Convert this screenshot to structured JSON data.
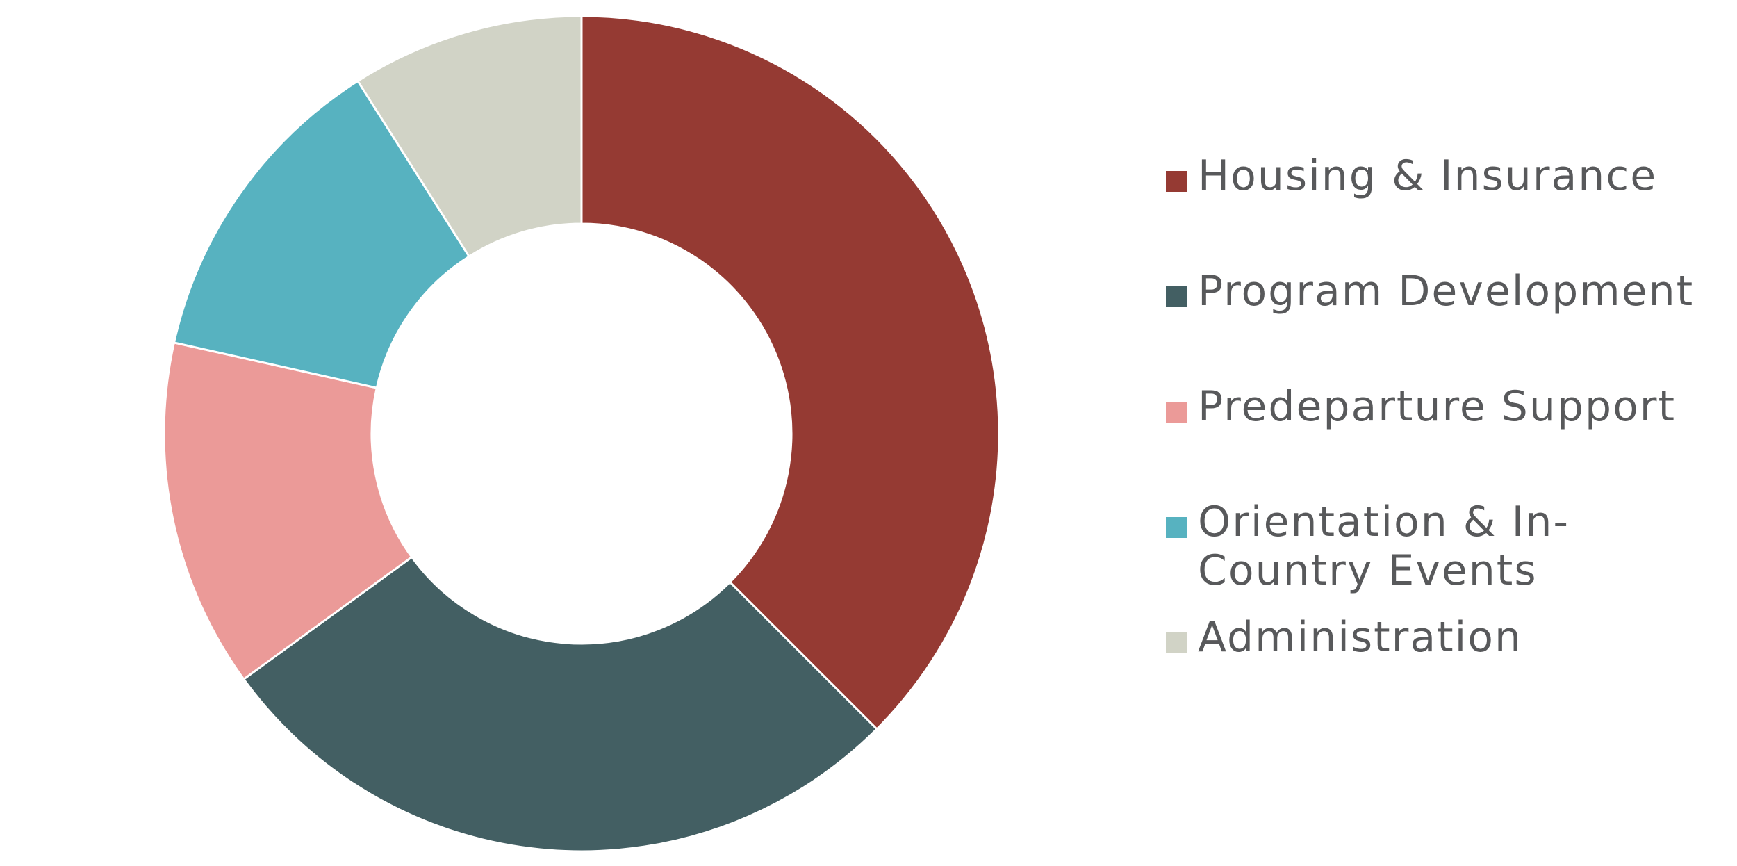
{
  "chart_data": {
    "type": "pie",
    "donut": true,
    "categories": [
      "Housing & Insurance",
      "Program Development",
      "Predeparture Support",
      "Orientation & In-Country Events",
      "Administration"
    ],
    "values": [
      37.5,
      27.5,
      13.5,
      12.5,
      9.0
    ],
    "colors": [
      "#953a33",
      "#435f63",
      "#eb9a98",
      "#57b2c0",
      "#d1d3c6"
    ],
    "legend_position": "right",
    "title": ""
  },
  "legend": {
    "items": [
      {
        "label": "Housing & Insurance",
        "color": "#953a33"
      },
      {
        "label": "Program Development",
        "color": "#435f63"
      },
      {
        "label": "Predeparture Support",
        "color": "#eb9a98"
      },
      {
        "label": "Orientation & In-Country Events",
        "color": "#57b2c0"
      },
      {
        "label": "Administration",
        "color": "#d1d3c6"
      }
    ]
  }
}
